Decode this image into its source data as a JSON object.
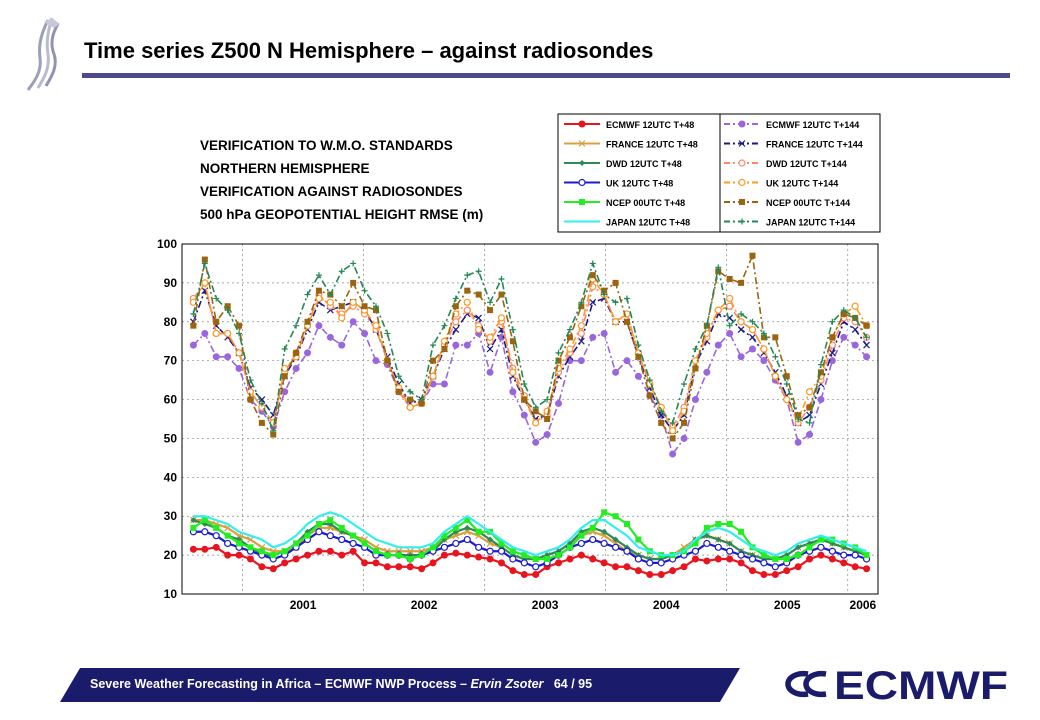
{
  "slide": {
    "title": "Time series Z500 N Hemisphere – against radiosondes",
    "footer_main": "Severe Weather Forecasting in Africa – ECMWF NWP Process – ",
    "footer_author": "Ervin Zsoter",
    "footer_page": "64 / 95",
    "logo_text": "ECMWF",
    "colors": {
      "title_rule": "#4a4a8c",
      "footer_bar": "#1b1b6b",
      "logo": "#1b1b6b"
    }
  },
  "chart_data": {
    "type": "line",
    "title_lines": [
      "VERIFICATION TO W.M.O. STANDARDS",
      "NORTHERN HEMISPHERE",
      "VERIFICATION AGAINST RADIOSONDES",
      "500 hPa GEOPOTENTIAL HEIGHT  RMSE (m)"
    ],
    "ylim": [
      10,
      100
    ],
    "yticks": [
      10,
      20,
      30,
      40,
      50,
      60,
      70,
      80,
      90,
      100
    ],
    "x_start": 2000.5,
    "x_end": 2006.25,
    "year_boundaries": [
      2001,
      2002,
      2003,
      2004,
      2005,
      2006
    ],
    "xtick_labels": [
      {
        "label": "2001",
        "at": 2001.5
      },
      {
        "label": "2002",
        "at": 2002.5
      },
      {
        "label": "2003",
        "at": 2003.5
      },
      {
        "label": "2004",
        "at": 2004.5
      },
      {
        "label": "2005",
        "at": 2005.5
      },
      {
        "label": "2006",
        "at": 2006.125
      }
    ],
    "grid": "dashed",
    "legend_position": "top-right",
    "series": [
      {
        "legend": "ECMWF 12UTC T+48",
        "color": "#e8141e",
        "marker": "circle",
        "dash": "solid",
        "values": [
          21.5,
          21.5,
          22,
          20,
          20,
          19,
          17,
          16.5,
          18,
          19,
          20,
          21,
          21,
          20,
          21,
          18,
          18,
          17,
          17,
          17,
          16.5,
          18,
          20,
          20.5,
          20,
          19.5,
          19,
          18,
          16,
          15,
          15,
          17,
          18,
          19,
          20,
          19,
          18,
          17,
          17,
          16,
          15,
          15,
          16,
          17,
          19,
          18.5,
          19,
          19,
          18,
          16,
          15,
          15,
          16,
          17,
          19,
          20,
          19,
          18,
          17,
          16.5
        ]
      },
      {
        "legend": "FRANCE 12UTC T+48",
        "color": "#d8a040",
        "marker": "x",
        "dash": "solid",
        "values": [
          29,
          29,
          28,
          27,
          25,
          24,
          22,
          21,
          21,
          22,
          25,
          27,
          27,
          26,
          25,
          24,
          22,
          21,
          21,
          21,
          21,
          22,
          24,
          25,
          26,
          25,
          23,
          22,
          20,
          19,
          19,
          20,
          21,
          23,
          25,
          26,
          25,
          23,
          21,
          20,
          19,
          19,
          20,
          22,
          24,
          25,
          24,
          23,
          21,
          20,
          19,
          19,
          20,
          22,
          23,
          24,
          23,
          22,
          21,
          20
        ]
      },
      {
        "legend": "DWD 12UTC T+48",
        "color": "#2e8b57",
        "marker": "diamond",
        "dash": "solid",
        "values": [
          29,
          28,
          27,
          25,
          24,
          22,
          20,
          20,
          21,
          23,
          26,
          28,
          28,
          26,
          25,
          23,
          21,
          20,
          20,
          20,
          20,
          21,
          24,
          26,
          27,
          26,
          24,
          22,
          20,
          19,
          19,
          20,
          21,
          23,
          26,
          27,
          26,
          24,
          22,
          20,
          19,
          19,
          20,
          21,
          24,
          25,
          24,
          23,
          21,
          20,
          19,
          19,
          20,
          22,
          23,
          24,
          23,
          22,
          21,
          20
        ]
      },
      {
        "legend": "UK 12UTC T+48",
        "color": "#1c1ccc",
        "marker": "ocircle",
        "dash": "solid",
        "values": [
          26,
          26,
          25,
          23,
          22,
          21,
          20,
          19,
          20,
          22,
          24,
          26,
          25,
          24,
          23,
          22,
          20,
          20,
          20,
          19,
          20,
          21,
          22,
          23,
          24,
          22,
          21,
          21,
          19,
          18,
          17,
          18,
          20,
          22,
          23,
          24,
          23,
          22,
          21,
          19,
          18,
          18,
          19,
          20,
          21,
          23,
          22,
          21,
          20,
          19,
          18,
          17,
          18,
          20,
          21,
          22,
          21,
          20,
          20,
          19
        ]
      },
      {
        "legend": "NCEP 00UTC T+48",
        "color": "#22ee22",
        "marker": "square",
        "dash": "solid",
        "values": [
          27,
          29,
          27,
          25,
          23,
          22,
          21,
          20,
          21,
          23,
          25,
          28,
          29,
          27,
          25,
          23,
          21,
          20,
          20,
          19,
          20,
          22,
          25,
          27,
          29,
          26,
          26,
          23,
          21,
          20,
          19,
          19,
          20,
          22,
          25,
          27,
          31,
          30,
          28,
          24,
          21,
          20,
          20,
          21,
          23,
          27,
          28,
          28,
          26,
          22,
          20,
          19,
          19,
          20,
          22,
          24,
          24,
          23,
          22,
          20
        ]
      },
      {
        "legend": "JAPAN 12UTC T+48",
        "color": "#33eeee",
        "marker": "none",
        "dash": "solid",
        "values": [
          30,
          30,
          29,
          28,
          26,
          25,
          24,
          22,
          23,
          25,
          28,
          30,
          31,
          30,
          28,
          26,
          24,
          23,
          22,
          22,
          22,
          23,
          26,
          28,
          30,
          28,
          26,
          24,
          22,
          21,
          20,
          21,
          22,
          24,
          27,
          29,
          29,
          27,
          25,
          22,
          21,
          20,
          20,
          21,
          24,
          26,
          27,
          26,
          24,
          22,
          21,
          20,
          21,
          23,
          24,
          25,
          24,
          23,
          22,
          21
        ]
      },
      {
        "legend": "ECMWF 12UTC T+144",
        "color": "#9966dd",
        "marker": "circle",
        "dash": "dashdot",
        "values": [
          74,
          77,
          71,
          71,
          68,
          60,
          57,
          53,
          62,
          68,
          72,
          79,
          76,
          74,
          80,
          77,
          70,
          69,
          62,
          58,
          59,
          64,
          64,
          74,
          74,
          77,
          67,
          76,
          62,
          56,
          49,
          51,
          59,
          70,
          70,
          76,
          77,
          67,
          70,
          66,
          61,
          56,
          46,
          50,
          60,
          67,
          74,
          77,
          71,
          73,
          70,
          65,
          60,
          49,
          51,
          60,
          70,
          76,
          74,
          71
        ]
      },
      {
        "legend": "FRANCE 12UTC T+144",
        "color": "#1a1a88",
        "marker": "x",
        "dash": "dashdot",
        "values": [
          80,
          88,
          79,
          76,
          72,
          63,
          60,
          56,
          66,
          71,
          78,
          85,
          83,
          84,
          85,
          83,
          78,
          71,
          64,
          59,
          60,
          66,
          73,
          78,
          82,
          81,
          73,
          78,
          66,
          60,
          55,
          56,
          66,
          71,
          75,
          85,
          86,
          80,
          80,
          71,
          63,
          56,
          52,
          56,
          69,
          75,
          82,
          81,
          78,
          76,
          72,
          67,
          61,
          54,
          56,
          64,
          72,
          80,
          78,
          74
        ]
      },
      {
        "legend": "DWD 12UTC T+144",
        "color": "#ff8866",
        "marker": "ocircle",
        "dash": "dashdot",
        "values": [
          86,
          90,
          77,
          77,
          72,
          62,
          58,
          54,
          67,
          72,
          79,
          87,
          84,
          82,
          84,
          82,
          78,
          70,
          62,
          58,
          59,
          66,
          74,
          80,
          83,
          79,
          75,
          80,
          68,
          61,
          54,
          56,
          67,
          72,
          77,
          89,
          87,
          80,
          82,
          72,
          64,
          58,
          53,
          58,
          70,
          76,
          83,
          84,
          80,
          78,
          73,
          66,
          60,
          54,
          58,
          65,
          74,
          81,
          80,
          76
        ]
      },
      {
        "legend": "UK 12UTC T+144",
        "color": "#ff9922",
        "marker": "ocircle",
        "dash": "dashdot",
        "values": [
          85,
          90,
          77,
          77,
          72,
          62,
          58,
          54,
          68,
          71,
          79,
          86,
          85,
          81,
          85,
          83,
          79,
          70,
          63,
          58,
          59,
          66,
          75,
          82,
          85,
          78,
          76,
          81,
          67,
          60,
          54,
          57,
          68,
          73,
          79,
          91,
          87,
          80,
          82,
          72,
          64,
          58,
          52,
          57,
          70,
          77,
          83,
          86,
          80,
          78,
          73,
          66,
          60,
          55,
          62,
          66,
          76,
          82,
          84,
          79
        ]
      },
      {
        "legend": "NCEP 00UTC T+144",
        "color": "#9a6410",
        "marker": "square",
        "dash": "dashdot",
        "values": [
          79,
          96,
          80,
          84,
          79,
          60,
          54,
          51,
          66,
          72,
          80,
          88,
          87,
          84,
          90,
          84,
          83,
          70,
          62,
          60,
          59,
          70,
          73,
          84,
          88,
          87,
          83,
          87,
          75,
          60,
          57,
          55,
          70,
          76,
          84,
          92,
          88,
          90,
          80,
          71,
          61,
          54,
          50,
          54,
          68,
          79,
          93,
          91,
          90,
          97,
          76,
          76,
          66,
          56,
          58,
          67,
          76,
          82,
          81,
          79
        ]
      },
      {
        "legend": "JAPAN 12UTC T+144",
        "color": "#228855",
        "marker": "plus",
        "dash": "dashdot",
        "values": [
          82,
          95,
          86,
          83,
          77,
          65,
          59,
          52,
          73,
          79,
          87,
          92,
          87,
          93,
          95,
          88,
          84,
          77,
          66,
          62,
          60,
          74,
          79,
          86,
          92,
          93,
          85,
          91,
          78,
          64,
          58,
          60,
          72,
          78,
          85,
          95,
          87,
          85,
          86,
          74,
          65,
          57,
          54,
          64,
          73,
          79,
          94,
          79,
          82,
          80,
          77,
          71,
          64,
          55,
          54,
          69,
          80,
          83,
          81,
          76
        ]
      }
    ]
  }
}
